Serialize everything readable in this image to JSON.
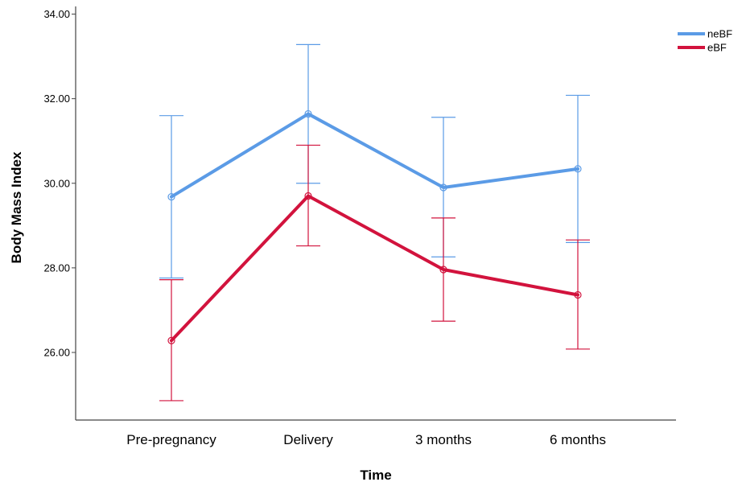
{
  "chart_data": {
    "type": "line",
    "xlabel": "Time",
    "ylabel": "Body Mass Index",
    "categories": [
      "Pre-pregnancy",
      "Delivery",
      "3 months",
      "6 months"
    ],
    "ylim": [
      24.0,
      34.0
    ],
    "yticks": [
      26.0,
      28.0,
      30.0,
      32.0,
      34.0
    ],
    "ytick_labels": [
      "26.00",
      "28.00",
      "30.00",
      "32.00",
      "34.00"
    ],
    "error_bars": true,
    "grid": false,
    "legend_position": "top-right",
    "series": [
      {
        "name": "neBF",
        "color": "#5b9be6",
        "values": [
          29.68,
          31.64,
          29.9,
          30.34
        ],
        "lower": [
          27.76,
          30.0,
          28.26,
          28.6
        ],
        "upper": [
          31.6,
          33.28,
          31.56,
          32.08
        ]
      },
      {
        "name": "eBF",
        "color": "#d2133d",
        "values": [
          26.28,
          29.7,
          27.96,
          27.36
        ],
        "lower": [
          24.86,
          28.52,
          26.74,
          26.08
        ],
        "upper": [
          27.72,
          30.9,
          29.18,
          28.66
        ]
      }
    ]
  }
}
